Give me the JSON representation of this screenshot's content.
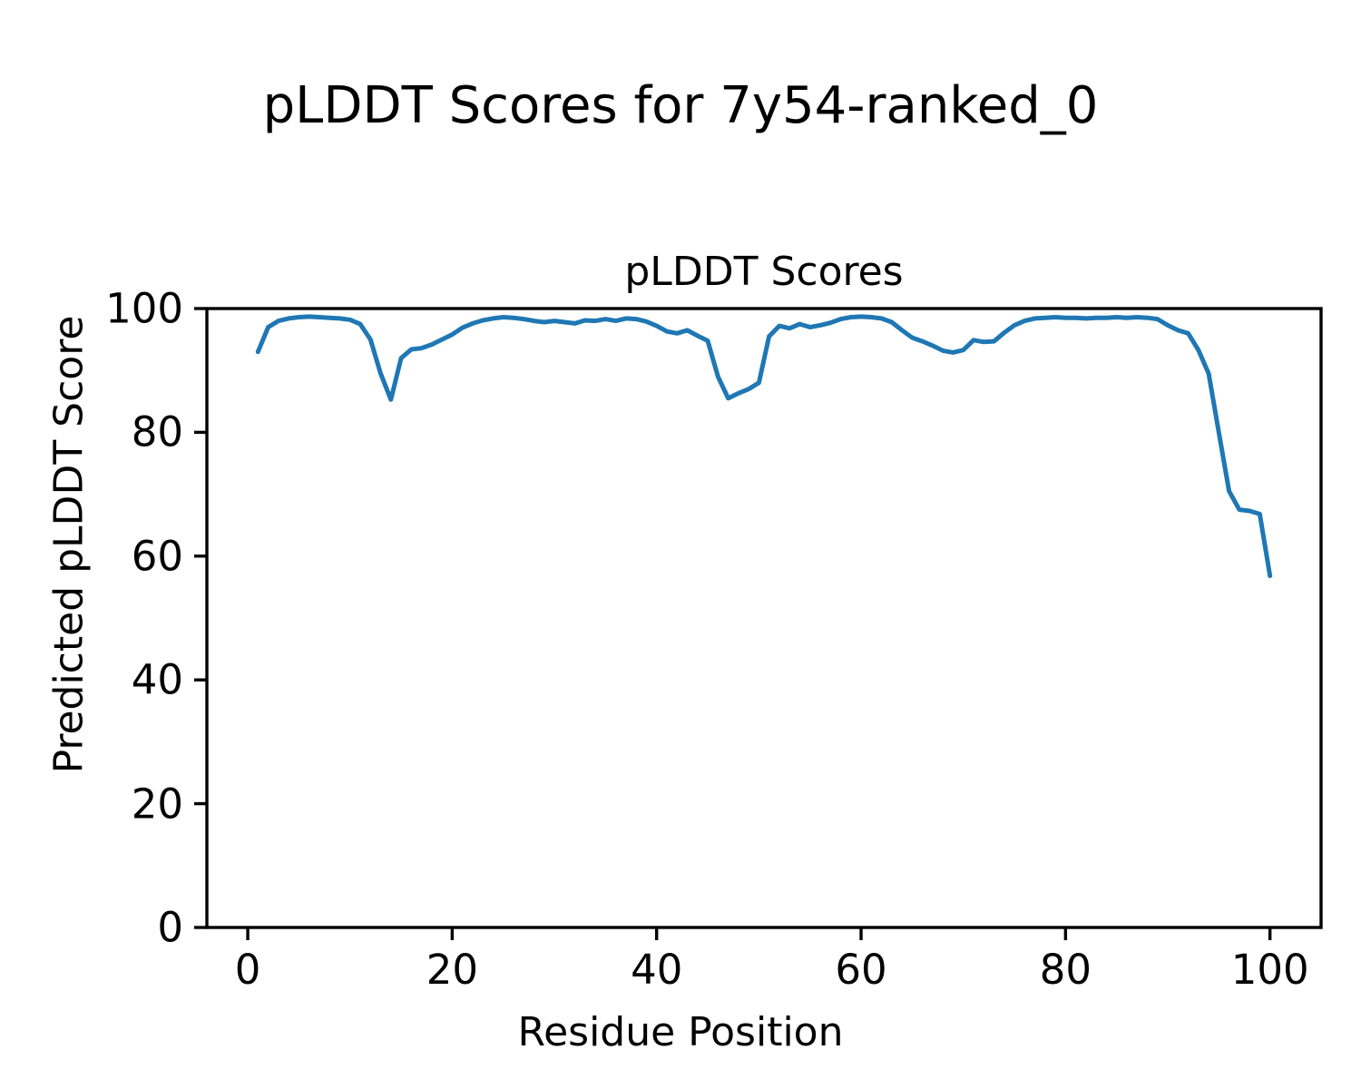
{
  "figure": {
    "suptitle": "pLDDT Scores for 7y54-ranked_0"
  },
  "chart_data": {
    "type": "line",
    "title": "pLDDT Scores",
    "xlabel": "Residue Position",
    "ylabel": "Predicted pLDDT Score",
    "xlim": [
      -4,
      105
    ],
    "ylim": [
      0,
      100
    ],
    "x_ticks": [
      0,
      20,
      40,
      60,
      80,
      100
    ],
    "y_ticks": [
      0,
      20,
      40,
      60,
      80,
      100
    ],
    "grid": false,
    "legend": "none",
    "line_color": "#1f77b4",
    "series": [
      {
        "name": "pLDDT",
        "x_start": 1,
        "x_step": 1,
        "values": [
          93.0,
          97.0,
          98.0,
          98.4,
          98.6,
          98.7,
          98.6,
          98.5,
          98.4,
          98.2,
          97.5,
          95.0,
          89.5,
          85.3,
          92.0,
          93.4,
          93.6,
          94.2,
          95.0,
          95.8,
          96.9,
          97.6,
          98.1,
          98.4,
          98.6,
          98.5,
          98.3,
          98.0,
          97.8,
          98.0,
          97.8,
          97.6,
          98.1,
          98.0,
          98.3,
          98.0,
          98.4,
          98.3,
          97.9,
          97.2,
          96.3,
          96.0,
          96.5,
          95.6,
          94.8,
          89.0,
          85.5,
          86.3,
          87.0,
          88.0,
          95.5,
          97.2,
          96.8,
          97.5,
          97.0,
          97.3,
          97.7,
          98.3,
          98.6,
          98.7,
          98.6,
          98.4,
          97.8,
          96.5,
          95.3,
          94.7,
          94.0,
          93.2,
          92.9,
          93.3,
          94.9,
          94.6,
          94.7,
          96.1,
          97.3,
          98.0,
          98.4,
          98.5,
          98.6,
          98.5,
          98.5,
          98.4,
          98.5,
          98.5,
          98.6,
          98.5,
          98.6,
          98.5,
          98.3,
          97.3,
          96.5,
          96.0,
          93.3,
          89.5,
          80.0,
          70.5,
          67.5,
          67.3,
          66.8,
          56.8
        ]
      }
    ]
  }
}
